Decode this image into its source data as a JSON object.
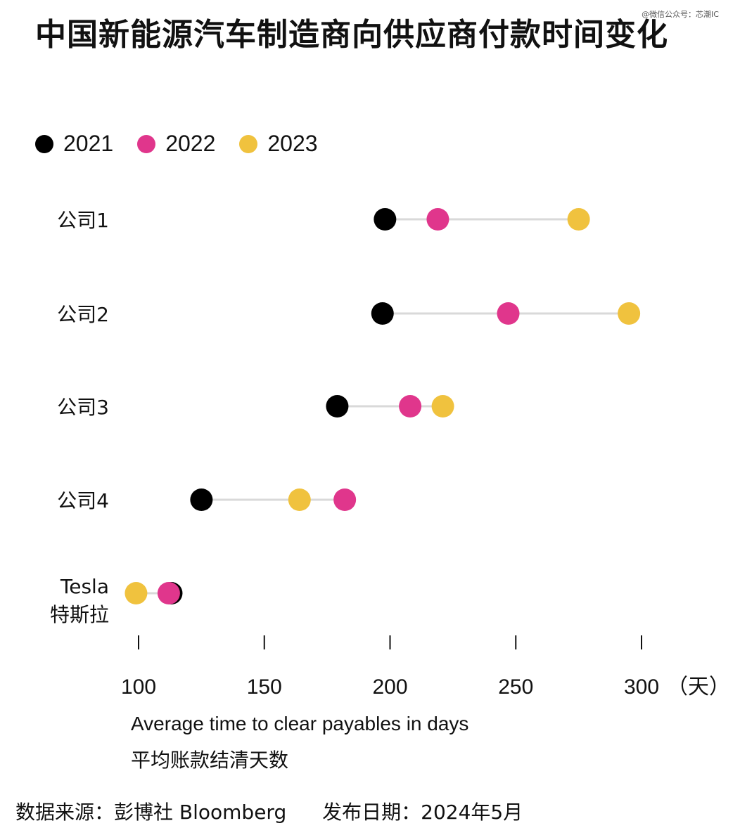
{
  "watermark": "@微信公众号：芯潮IC",
  "title": "中国新能源汽车制造商向供应商付款时间变化",
  "legend": [
    {
      "label": "2021",
      "color": "#000000"
    },
    {
      "label": "2022",
      "color": "#e0368c"
    },
    {
      "label": "2023",
      "color": "#f0c23e"
    }
  ],
  "axis_unit": "（天）",
  "xlabel": "Average time to clear payables in days",
  "xlabel_zh": "平均账款结清天数",
  "footer": {
    "source": "数据来源：彭博社 Bloomberg",
    "date": "发布日期：2024年5月"
  },
  "chart_data": {
    "type": "dot",
    "title": "中国新能源汽车制造商向供应商付款时间变化",
    "xlabel": "Average time to clear payables in days",
    "xlim": [
      100,
      300
    ],
    "xticks": [
      100,
      150,
      200,
      250,
      300
    ],
    "categories": [
      {
        "name": "公司1",
        "sub": ""
      },
      {
        "name": "公司2",
        "sub": ""
      },
      {
        "name": "公司3",
        "sub": ""
      },
      {
        "name": "公司4",
        "sub": ""
      },
      {
        "name": "Tesla",
        "sub": "特斯拉"
      }
    ],
    "series": [
      {
        "name": "2021",
        "color": "#000000",
        "values": [
          198,
          197,
          179,
          125,
          113
        ]
      },
      {
        "name": "2022",
        "color": "#e0368c",
        "values": [
          219,
          247,
          208,
          182,
          112
        ]
      },
      {
        "name": "2023",
        "color": "#f0c23e",
        "values": [
          275,
          295,
          221,
          164,
          99
        ]
      }
    ],
    "legend": "top-left"
  }
}
